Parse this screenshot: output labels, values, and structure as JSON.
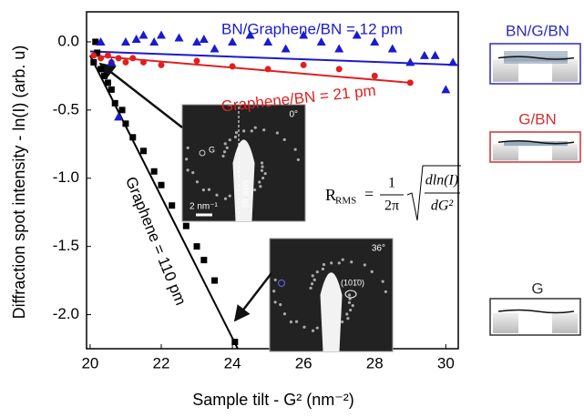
{
  "chart_data": {
    "type": "scatter",
    "x_label": "Sample tilt - G² (nm⁻²)",
    "y_label": "Diffraction spot intensity - ln(I) (arb. u)",
    "xlim": [
      19.9,
      30.35
    ],
    "ylim": [
      -2.25,
      0.22
    ],
    "xticks": [
      20,
      22,
      24,
      26,
      28,
      30
    ],
    "yticks": [
      {
        "value": 0,
        "label": "0.0"
      },
      -0.5,
      {
        "value": -1,
        "label": "-1.0"
      },
      -1.5,
      {
        "value": -2,
        "label": "-2.0"
      }
    ],
    "series": [
      {
        "color": "#000000",
        "marker": "square",
        "x": [
          20.15,
          20.2,
          20.1,
          20.3,
          20.4,
          20.5,
          20.6,
          20.7,
          20.9,
          21.0,
          21.2,
          21.5,
          21.8,
          22.0,
          22.3,
          22.7,
          23.0,
          23.2,
          23.5,
          24.07
        ],
        "values": [
          0.0,
          -0.08,
          -0.15,
          -0.2,
          -0.25,
          -0.3,
          -0.35,
          -0.45,
          -0.5,
          -0.6,
          -0.7,
          -0.8,
          -0.95,
          -1.05,
          -1.2,
          -1.35,
          -1.5,
          -1.6,
          -1.75,
          -2.2
        ]
      },
      {
        "color": "#e02020",
        "marker": "circle",
        "x": [
          20.1,
          20.3,
          20.5,
          20.6,
          20.8,
          21.0,
          21.2,
          21.5,
          22.0,
          23.0,
          24.0,
          25.0,
          26.0,
          27.0,
          28.0,
          29.0
        ],
        "values": [
          -0.1,
          -0.12,
          -0.1,
          -0.15,
          -0.12,
          -0.15,
          -0.12,
          -0.15,
          -0.17,
          -0.14,
          -0.18,
          -0.2,
          -0.17,
          -0.2,
          -0.25,
          -0.3
        ]
      },
      {
        "color": "#1a1ad0",
        "marker": "triangle",
        "x": [
          20.3,
          20.6,
          20.8,
          21.0,
          21.3,
          21.5,
          21.8,
          22.0,
          22.5,
          23.0,
          23.2,
          23.5,
          24.0,
          24.5,
          25.0,
          25.5,
          26.0,
          26.5,
          27.0,
          27.5,
          28.0,
          28.5,
          29.0,
          29.4,
          29.7,
          30.0,
          30.2
        ],
        "values": [
          0.0,
          -0.15,
          -0.55,
          0.0,
          0.02,
          0.05,
          0.0,
          0.05,
          0.03,
          0.0,
          0.02,
          -0.05,
          0.0,
          0.05,
          0.0,
          -0.05,
          0.05,
          0.0,
          -0.05,
          0.05,
          0.0,
          -0.05,
          -0.15,
          -0.1,
          -0.1,
          -0.35,
          -0.15
        ]
      }
    ],
    "fits": [
      {
        "color": "#000000",
        "x": [
          20.0,
          24.15
        ],
        "values": [
          -0.1,
          -2.25
        ]
      },
      {
        "color": "#e02020",
        "x": [
          20.0,
          29.0
        ],
        "values": [
          -0.1,
          -0.3
        ]
      },
      {
        "color": "#1a1ad0",
        "x": [
          20.0,
          30.35
        ],
        "values": [
          -0.07,
          -0.17
        ]
      }
    ],
    "annotations": [
      "BN/Graphene/BN = 12 pm",
      "Graphene/BN = 21 pm",
      "Graphene = 110 pm"
    ],
    "formula": {
      "lhs": "R",
      "lhs_sub": "RMS",
      "equals": "=",
      "num": "1",
      "den": "2π",
      "rad_num": "dln(I)",
      "rad_den": "dG²"
    }
  },
  "insets": [
    {
      "angle": "0°",
      "scale": "2 nm⁻¹",
      "axis": "tilt axis",
      "spot": "G"
    },
    {
      "angle": "36°",
      "spot": "(101̄0)"
    }
  ],
  "side_panels": [
    "BN/G/BN",
    "G/BN",
    "G"
  ]
}
